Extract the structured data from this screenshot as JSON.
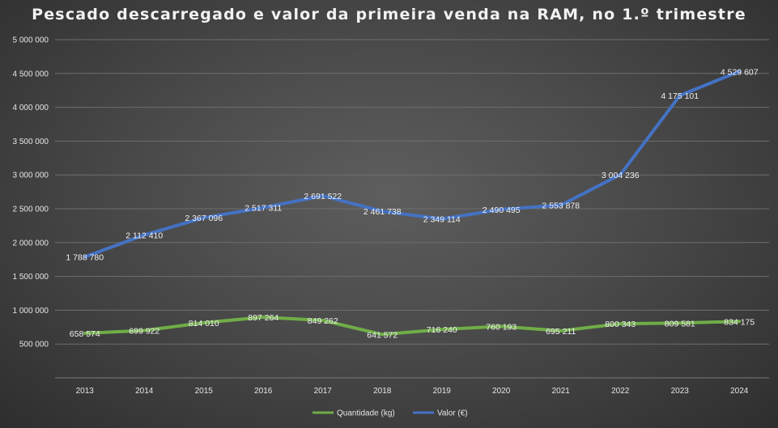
{
  "chart_data": {
    "type": "line",
    "title": "Pescado descarregado e valor da primeira venda na RAM, no 1.º trimestre",
    "xlabel": "",
    "ylabel": "",
    "categories": [
      "2013",
      "2014",
      "2015",
      "2016",
      "2017",
      "2018",
      "2019",
      "2020",
      "2021",
      "2022",
      "2023",
      "2024"
    ],
    "ylim": [
      0,
      5000000
    ],
    "yticks": [
      500000,
      1000000,
      1500000,
      2000000,
      2500000,
      3000000,
      3500000,
      4000000,
      4500000,
      5000000
    ],
    "ytick_labels": [
      "500 000",
      "1 000 000",
      "1 500 000",
      "2 000 000",
      "2 500 000",
      "3 000 000",
      "3 500 000",
      "4 000 000",
      "4 500 000",
      "5 000 000"
    ],
    "grid": true,
    "legend_position": "bottom-center",
    "series": [
      {
        "name": "Quantidade (kg)",
        "color": "#70ad47",
        "values": [
          658574,
          699922,
          814010,
          897264,
          849262,
          641572,
          716240,
          760193,
          695211,
          800343,
          809581,
          834175
        ],
        "labels": [
          "658 574",
          "699 922",
          "814 010",
          "897 264",
          "849 262",
          "641 572",
          "716 240",
          "760 193",
          "695 211",
          "800 343",
          "809 581",
          "834 175"
        ]
      },
      {
        "name": "Valor (€)",
        "color": "#4472c4",
        "values": [
          1788780,
          2112410,
          2367096,
          2517311,
          2691522,
          2461738,
          2349114,
          2490495,
          2553878,
          3004236,
          4175101,
          4529607
        ],
        "labels": [
          "1 788 780",
          "2 112 410",
          "2 367 096",
          "2 517 311",
          "2 691 522",
          "2 461 738",
          "2 349 114",
          "2 490 495",
          "2 553 878",
          "3 004 236",
          "4 175 101",
          "4 529 607"
        ]
      }
    ]
  }
}
